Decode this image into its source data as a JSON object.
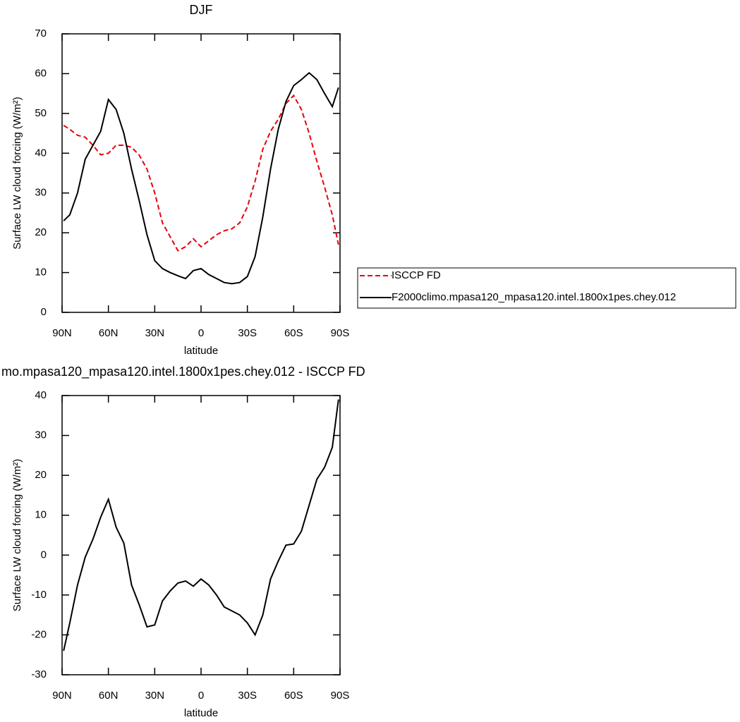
{
  "chart_data": [
    {
      "type": "line",
      "title": "DJF",
      "xlabel": "latitude",
      "ylabel": "Surface LW cloud forcing (W/m²)",
      "x": [
        89,
        85,
        80,
        75,
        70,
        65,
        60,
        55,
        50,
        45,
        40,
        35,
        30,
        25,
        20,
        15,
        10,
        5,
        0,
        -5,
        -10,
        -15,
        -20,
        -25,
        -30,
        -35,
        -40,
        -45,
        -50,
        -55,
        -60,
        -65,
        -70,
        -75,
        -80,
        -85,
        -89
      ],
      "series": [
        {
          "name": "ISCCP FD",
          "color": "#e8000b",
          "dashed": true,
          "values": [
            47,
            46,
            44.5,
            44,
            42,
            39.6,
            40,
            42,
            42,
            41.5,
            39.5,
            36,
            30,
            22.5,
            19,
            15.5,
            16.5,
            18.5,
            16.5,
            18,
            19.5,
            20.5,
            21,
            22.5,
            26.5,
            33,
            41,
            45.5,
            48.5,
            52.5,
            54.5,
            51,
            45,
            38,
            31.5,
            24.5,
            17
          ]
        },
        {
          "name": "F2000climo.mpasa120_mpasa120.intel.1800x1pes.chey.012",
          "color": "#000000",
          "dashed": false,
          "values": [
            23,
            24.5,
            30,
            38.5,
            42,
            45.5,
            53.5,
            51,
            45,
            36,
            28,
            19.5,
            13,
            11,
            10,
            9.2,
            8.5,
            10.5,
            11,
            9.5,
            8.5,
            7.5,
            7.2,
            7.5,
            9,
            14,
            24,
            36,
            46,
            53,
            57,
            58.5,
            60.2,
            58.5,
            55,
            51.7,
            56.5
          ]
        }
      ],
      "xlim": [
        90,
        -90
      ],
      "xticks": [
        {
          "value": 90,
          "label": "90N"
        },
        {
          "value": 60,
          "label": "60N"
        },
        {
          "value": 30,
          "label": "30N"
        },
        0,
        {
          "value": -30,
          "label": "30S"
        },
        {
          "value": -60,
          "label": "60S"
        },
        {
          "value": -90,
          "label": "90S"
        }
      ],
      "ylim": [
        0,
        70
      ],
      "yticks": [
        0,
        10,
        20,
        30,
        40,
        50,
        60,
        70
      ],
      "legend": "outside-right",
      "grid": false
    },
    {
      "type": "line",
      "title": "mo.mpasa120_mpasa120.intel.1800x1pes.chey.012 - ISCCP FD",
      "xlabel": "latitude",
      "ylabel": "Surface LW cloud forcing (W/m²)",
      "x": [
        89,
        85,
        80,
        75,
        70,
        65,
        60,
        55,
        50,
        45,
        40,
        35,
        30,
        25,
        20,
        15,
        10,
        5,
        0,
        -5,
        -10,
        -15,
        -20,
        -25,
        -30,
        -35,
        -40,
        -45,
        -50,
        -55,
        -60,
        -65,
        -70,
        -75,
        -80,
        -85,
        -89
      ],
      "series": [
        {
          "color": "#000000",
          "dashed": false,
          "values": [
            -24,
            -17,
            -7.5,
            -0.5,
            4,
            9.5,
            14,
            7,
            3,
            -7.5,
            -12.5,
            -18,
            -17.5,
            -11.5,
            -9,
            -7,
            -6.5,
            -7.8,
            -6,
            -7.5,
            -10,
            -13,
            -14,
            -15,
            -17,
            -20,
            -15,
            -6,
            -1.5,
            2.5,
            2.8,
            6,
            12.5,
            19,
            22,
            27,
            39
          ]
        }
      ],
      "xlim": [
        90,
        -90
      ],
      "xticks": [
        {
          "value": 90,
          "label": "90N"
        },
        {
          "value": 60,
          "label": "60N"
        },
        {
          "value": 30,
          "label": "30N"
        },
        0,
        {
          "value": -30,
          "label": "30S"
        },
        {
          "value": -60,
          "label": "60S"
        },
        {
          "value": -90,
          "label": "90S"
        }
      ],
      "ylim": [
        -30,
        40
      ],
      "yticks": [
        -30,
        -20,
        -10,
        0,
        10,
        20,
        30,
        40
      ],
      "grid": false
    }
  ]
}
